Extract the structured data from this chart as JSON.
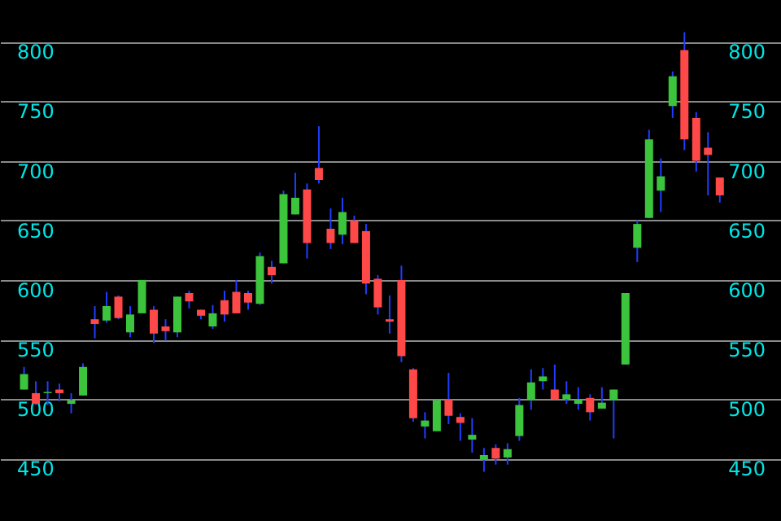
{
  "chart_data": {
    "type": "candlestick",
    "categories": [
      null,
      null,
      null,
      null,
      null,
      null,
      null,
      null,
      null,
      null,
      null,
      null,
      null,
      null,
      null,
      null,
      null,
      null,
      null,
      null,
      null,
      null,
      null,
      null,
      null,
      null,
      null,
      null,
      null,
      null,
      null,
      null,
      null,
      null,
      null,
      null,
      null,
      null,
      null,
      null,
      null,
      null,
      null,
      null,
      null,
      null,
      null,
      null,
      null,
      null,
      null,
      null,
      null,
      null,
      null,
      null,
      null,
      null,
      null,
      null
    ],
    "ohlc": [
      [
        508,
        527,
        508,
        521
      ],
      [
        505,
        515,
        495,
        496
      ],
      [
        505,
        515,
        495,
        506
      ],
      [
        508,
        513,
        498,
        505
      ],
      [
        496,
        505,
        488,
        499
      ],
      [
        503,
        530,
        503,
        527
      ],
      [
        567,
        578,
        551,
        563
      ],
      [
        566,
        590,
        564,
        578
      ],
      [
        586,
        587,
        567,
        568
      ],
      [
        556,
        578,
        552,
        571
      ],
      [
        572,
        600,
        572,
        600
      ],
      [
        575,
        578,
        547,
        555
      ],
      [
        561,
        567,
        549,
        557
      ],
      [
        556,
        586,
        552,
        586
      ],
      [
        589,
        591,
        576,
        582
      ],
      [
        575,
        575,
        567,
        570
      ],
      [
        561,
        579,
        559,
        572
      ],
      [
        583,
        591,
        565,
        571
      ],
      [
        590,
        600,
        572,
        572
      ],
      [
        589,
        591,
        575,
        581
      ],
      [
        580,
        623,
        579,
        620
      ],
      [
        611,
        616,
        597,
        604
      ],
      [
        614,
        675,
        614,
        672
      ],
      [
        655,
        690,
        655,
        669
      ],
      [
        676,
        681,
        618,
        631
      ],
      [
        694,
        729,
        681,
        684
      ],
      [
        643,
        660,
        626,
        631
      ],
      [
        638,
        669,
        630,
        657
      ],
      [
        650,
        654,
        631,
        631
      ],
      [
        641,
        647,
        588,
        597
      ],
      [
        601,
        604,
        571,
        577
      ],
      [
        567,
        587,
        555,
        565
      ],
      [
        600,
        612,
        531,
        536
      ],
      [
        525,
        526,
        481,
        484
      ],
      [
        477,
        489,
        467,
        482
      ],
      [
        473,
        499,
        473,
        499
      ],
      [
        500,
        522,
        479,
        486
      ],
      [
        485,
        488,
        465,
        480
      ],
      [
        466,
        484,
        455,
        470
      ],
      [
        449,
        459,
        439,
        453
      ],
      [
        459,
        462,
        445,
        450
      ],
      [
        451,
        463,
        445,
        458
      ],
      [
        469,
        501,
        465,
        495
      ],
      [
        499,
        525,
        491,
        514
      ],
      [
        515,
        526,
        508,
        519
      ],
      [
        508,
        529,
        500,
        500
      ],
      [
        500,
        515,
        496,
        504
      ],
      [
        496,
        510,
        491,
        500
      ],
      [
        501,
        504,
        482,
        489
      ],
      [
        492,
        510,
        492,
        497
      ],
      [
        499,
        508,
        467,
        508
      ],
      [
        529,
        589,
        529,
        589
      ],
      [
        627,
        650,
        615,
        647
      ],
      [
        652,
        726,
        652,
        718
      ],
      [
        675,
        702,
        657,
        687
      ],
      [
        746,
        775,
        736,
        771
      ],
      [
        793,
        808,
        709,
        718
      ],
      [
        736,
        741,
        691,
        700
      ],
      [
        711,
        724,
        671,
        705
      ],
      [
        686,
        686,
        665,
        671
      ]
    ],
    "ylim": [
      425,
      835
    ],
    "yticks": [
      450,
      500,
      550,
      600,
      650,
      700,
      750,
      800
    ],
    "y2lim": [
      425,
      835
    ],
    "y2ticks": [
      450,
      500,
      550,
      600,
      650,
      700,
      750,
      800
    ],
    "grid": "y"
  }
}
